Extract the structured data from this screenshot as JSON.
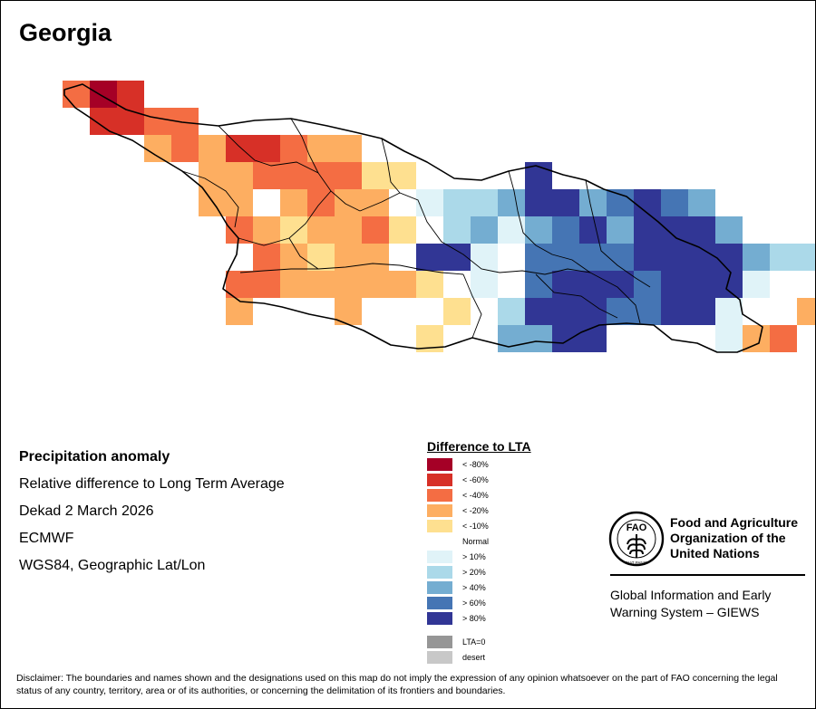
{
  "map": {
    "title": "Georgia",
    "grid_origin_note": "cells listed as row/col of a 30px anomaly grid",
    "cells": [
      {
        "r": 0,
        "c": 0,
        "cls": "neg40"
      },
      {
        "r": 0,
        "c": 1,
        "cls": "neg80"
      },
      {
        "r": 0,
        "c": 2,
        "cls": "neg60"
      },
      {
        "r": 1,
        "c": 1,
        "cls": "neg60"
      },
      {
        "r": 1,
        "c": 2,
        "cls": "neg60"
      },
      {
        "r": 1,
        "c": 3,
        "cls": "neg40"
      },
      {
        "r": 1,
        "c": 4,
        "cls": "neg40"
      },
      {
        "r": 2,
        "c": 3,
        "cls": "neg20"
      },
      {
        "r": 2,
        "c": 4,
        "cls": "neg40"
      },
      {
        "r": 2,
        "c": 5,
        "cls": "neg20"
      },
      {
        "r": 2,
        "c": 6,
        "cls": "neg60"
      },
      {
        "r": 2,
        "c": 7,
        "cls": "neg60"
      },
      {
        "r": 2,
        "c": 8,
        "cls": "neg40"
      },
      {
        "r": 2,
        "c": 9,
        "cls": "neg20"
      },
      {
        "r": 2,
        "c": 10,
        "cls": "neg20"
      },
      {
        "r": 3,
        "c": 5,
        "cls": "neg20"
      },
      {
        "r": 3,
        "c": 6,
        "cls": "neg20"
      },
      {
        "r": 3,
        "c": 7,
        "cls": "neg40"
      },
      {
        "r": 3,
        "c": 8,
        "cls": "neg40"
      },
      {
        "r": 3,
        "c": 9,
        "cls": "neg40"
      },
      {
        "r": 3,
        "c": 10,
        "cls": "neg40"
      },
      {
        "r": 3,
        "c": 11,
        "cls": "neg10"
      },
      {
        "r": 3,
        "c": 12,
        "cls": "neg10"
      },
      {
        "r": 3,
        "c": 17,
        "cls": "pos80"
      },
      {
        "r": 4,
        "c": 5,
        "cls": "neg20"
      },
      {
        "r": 4,
        "c": 6,
        "cls": "neg20"
      },
      {
        "r": 4,
        "c": 7,
        "cls": "normal"
      },
      {
        "r": 4,
        "c": 8,
        "cls": "neg20"
      },
      {
        "r": 4,
        "c": 9,
        "cls": "neg40"
      },
      {
        "r": 4,
        "c": 10,
        "cls": "neg20"
      },
      {
        "r": 4,
        "c": 11,
        "cls": "neg20"
      },
      {
        "r": 4,
        "c": 12,
        "cls": "normal"
      },
      {
        "r": 4,
        "c": 13,
        "cls": "pos10"
      },
      {
        "r": 4,
        "c": 14,
        "cls": "pos20"
      },
      {
        "r": 4,
        "c": 15,
        "cls": "pos20"
      },
      {
        "r": 4,
        "c": 16,
        "cls": "pos40"
      },
      {
        "r": 4,
        "c": 17,
        "cls": "pos80"
      },
      {
        "r": 4,
        "c": 18,
        "cls": "pos80"
      },
      {
        "r": 4,
        "c": 19,
        "cls": "pos40"
      },
      {
        "r": 4,
        "c": 20,
        "cls": "pos60"
      },
      {
        "r": 4,
        "c": 21,
        "cls": "pos80"
      },
      {
        "r": 4,
        "c": 22,
        "cls": "pos60"
      },
      {
        "r": 4,
        "c": 23,
        "cls": "pos40"
      },
      {
        "r": 5,
        "c": 6,
        "cls": "neg40"
      },
      {
        "r": 5,
        "c": 7,
        "cls": "neg20"
      },
      {
        "r": 5,
        "c": 8,
        "cls": "neg10"
      },
      {
        "r": 5,
        "c": 9,
        "cls": "neg20"
      },
      {
        "r": 5,
        "c": 10,
        "cls": "neg20"
      },
      {
        "r": 5,
        "c": 11,
        "cls": "neg40"
      },
      {
        "r": 5,
        "c": 12,
        "cls": "neg10"
      },
      {
        "r": 5,
        "c": 13,
        "cls": "normal"
      },
      {
        "r": 5,
        "c": 14,
        "cls": "pos20"
      },
      {
        "r": 5,
        "c": 15,
        "cls": "pos40"
      },
      {
        "r": 5,
        "c": 16,
        "cls": "pos10"
      },
      {
        "r": 5,
        "c": 17,
        "cls": "pos40"
      },
      {
        "r": 5,
        "c": 18,
        "cls": "pos60"
      },
      {
        "r": 5,
        "c": 19,
        "cls": "pos80"
      },
      {
        "r": 5,
        "c": 20,
        "cls": "pos40"
      },
      {
        "r": 5,
        "c": 21,
        "cls": "pos80"
      },
      {
        "r": 5,
        "c": 22,
        "cls": "pos80"
      },
      {
        "r": 5,
        "c": 23,
        "cls": "pos80"
      },
      {
        "r": 5,
        "c": 24,
        "cls": "pos40"
      },
      {
        "r": 6,
        "c": 7,
        "cls": "neg40"
      },
      {
        "r": 6,
        "c": 8,
        "cls": "neg20"
      },
      {
        "r": 6,
        "c": 9,
        "cls": "neg10"
      },
      {
        "r": 6,
        "c": 10,
        "cls": "neg20"
      },
      {
        "r": 6,
        "c": 11,
        "cls": "neg20"
      },
      {
        "r": 6,
        "c": 12,
        "cls": "normal"
      },
      {
        "r": 6,
        "c": 13,
        "cls": "pos80"
      },
      {
        "r": 6,
        "c": 14,
        "cls": "pos80"
      },
      {
        "r": 6,
        "c": 15,
        "cls": "pos10"
      },
      {
        "r": 6,
        "c": 16,
        "cls": "normal"
      },
      {
        "r": 6,
        "c": 17,
        "cls": "pos60"
      },
      {
        "r": 6,
        "c": 18,
        "cls": "pos60"
      },
      {
        "r": 6,
        "c": 19,
        "cls": "pos60"
      },
      {
        "r": 6,
        "c": 20,
        "cls": "pos60"
      },
      {
        "r": 6,
        "c": 21,
        "cls": "pos80"
      },
      {
        "r": 6,
        "c": 22,
        "cls": "pos80"
      },
      {
        "r": 6,
        "c": 23,
        "cls": "pos80"
      },
      {
        "r": 6,
        "c": 24,
        "cls": "pos80"
      },
      {
        "r": 6,
        "c": 25,
        "cls": "pos40"
      },
      {
        "r": 6,
        "c": 26,
        "cls": "pos20"
      },
      {
        "r": 6,
        "c": 27,
        "cls": "pos20"
      },
      {
        "r": 7,
        "c": 6,
        "cls": "neg40"
      },
      {
        "r": 7,
        "c": 7,
        "cls": "neg40"
      },
      {
        "r": 7,
        "c": 8,
        "cls": "neg20"
      },
      {
        "r": 7,
        "c": 9,
        "cls": "neg20"
      },
      {
        "r": 7,
        "c": 10,
        "cls": "neg20"
      },
      {
        "r": 7,
        "c": 11,
        "cls": "neg20"
      },
      {
        "r": 7,
        "c": 12,
        "cls": "neg20"
      },
      {
        "r": 7,
        "c": 13,
        "cls": "neg10"
      },
      {
        "r": 7,
        "c": 14,
        "cls": "normal"
      },
      {
        "r": 7,
        "c": 15,
        "cls": "pos10"
      },
      {
        "r": 7,
        "c": 16,
        "cls": "normal"
      },
      {
        "r": 7,
        "c": 17,
        "cls": "pos60"
      },
      {
        "r": 7,
        "c": 18,
        "cls": "pos80"
      },
      {
        "r": 7,
        "c": 19,
        "cls": "pos80"
      },
      {
        "r": 7,
        "c": 20,
        "cls": "pos80"
      },
      {
        "r": 7,
        "c": 21,
        "cls": "pos60"
      },
      {
        "r": 7,
        "c": 22,
        "cls": "pos80"
      },
      {
        "r": 7,
        "c": 23,
        "cls": "pos80"
      },
      {
        "r": 7,
        "c": 24,
        "cls": "pos80"
      },
      {
        "r": 7,
        "c": 25,
        "cls": "pos10"
      },
      {
        "r": 8,
        "c": 6,
        "cls": "neg20"
      },
      {
        "r": 8,
        "c": 7,
        "cls": "normal"
      },
      {
        "r": 8,
        "c": 8,
        "cls": "normal"
      },
      {
        "r": 8,
        "c": 9,
        "cls": "normal"
      },
      {
        "r": 8,
        "c": 10,
        "cls": "neg20"
      },
      {
        "r": 8,
        "c": 11,
        "cls": "normal"
      },
      {
        "r": 8,
        "c": 12,
        "cls": "normal"
      },
      {
        "r": 8,
        "c": 13,
        "cls": "normal"
      },
      {
        "r": 8,
        "c": 14,
        "cls": "neg10"
      },
      {
        "r": 8,
        "c": 15,
        "cls": "normal"
      },
      {
        "r": 8,
        "c": 16,
        "cls": "pos20"
      },
      {
        "r": 8,
        "c": 17,
        "cls": "pos80"
      },
      {
        "r": 8,
        "c": 18,
        "cls": "pos80"
      },
      {
        "r": 8,
        "c": 19,
        "cls": "pos80"
      },
      {
        "r": 8,
        "c": 20,
        "cls": "pos60"
      },
      {
        "r": 8,
        "c": 21,
        "cls": "pos60"
      },
      {
        "r": 8,
        "c": 22,
        "cls": "pos80"
      },
      {
        "r": 8,
        "c": 23,
        "cls": "pos80"
      },
      {
        "r": 8,
        "c": 24,
        "cls": "pos10"
      },
      {
        "r": 8,
        "c": 25,
        "cls": "normal"
      },
      {
        "r": 8,
        "c": 26,
        "cls": "normal"
      },
      {
        "r": 8,
        "c": 27,
        "cls": "neg20"
      },
      {
        "r": 9,
        "c": 13,
        "cls": "neg10"
      },
      {
        "r": 9,
        "c": 14,
        "cls": "normal"
      },
      {
        "r": 9,
        "c": 15,
        "cls": "normal"
      },
      {
        "r": 9,
        "c": 16,
        "cls": "pos40"
      },
      {
        "r": 9,
        "c": 17,
        "cls": "pos40"
      },
      {
        "r": 9,
        "c": 18,
        "cls": "pos80"
      },
      {
        "r": 9,
        "c": 19,
        "cls": "pos80"
      },
      {
        "r": 9,
        "c": 24,
        "cls": "pos10"
      },
      {
        "r": 9,
        "c": 25,
        "cls": "neg20"
      },
      {
        "r": 9,
        "c": 26,
        "cls": "neg40"
      }
    ]
  },
  "info": {
    "title": "Precipitation anomaly",
    "line1": "Relative difference to Long Term Average",
    "line2": "Dekad 2 March 2026",
    "line3": "ECMWF",
    "line4": "WGS84, Geographic Lat/Lon"
  },
  "legend": {
    "title": "Difference to LTA",
    "items": [
      {
        "key": "neg80",
        "label": "< -80%",
        "color": "#a50026"
      },
      {
        "key": "neg60",
        "label": "< -60%",
        "color": "#d73027"
      },
      {
        "key": "neg40",
        "label": "< -40%",
        "color": "#f46d43"
      },
      {
        "key": "neg20",
        "label": "< -20%",
        "color": "#fdae61"
      },
      {
        "key": "neg10",
        "label": "< -10%",
        "color": "#fee090"
      },
      {
        "key": "normal",
        "label": "Normal",
        "color": "#ffffff"
      },
      {
        "key": "pos10",
        "label": "> 10%",
        "color": "#e0f3f8"
      },
      {
        "key": "pos20",
        "label": "> 20%",
        "color": "#abd9e9"
      },
      {
        "key": "pos40",
        "label": "> 40%",
        "color": "#74add1"
      },
      {
        "key": "pos60",
        "label": "> 60%",
        "color": "#4575b4"
      },
      {
        "key": "pos80",
        "label": "> 80%",
        "color": "#313695"
      },
      {
        "key": "lta0",
        "label": "LTA=0",
        "color": "#969696"
      },
      {
        "key": "desert",
        "label": "desert",
        "color": "#c8c8c8"
      }
    ]
  },
  "fao": {
    "emblem_text": "FAO",
    "emblem_motto": "FIAT PANIS",
    "name_line1": "Food and Agriculture",
    "name_line2": "Organization of the",
    "name_line3": "United Nations",
    "giews_line1": "Global Information and Early",
    "giews_line2": "Warning System – GIEWS"
  },
  "disclaimer": "Disclaimer: The boundaries and names shown and the designations used on this map do not imply the expression of any opinion whatsoever on the part of FAO concerning the legal status of any country, territory, area or of its authorities, or concerning the delimitation of its frontiers and boundaries."
}
